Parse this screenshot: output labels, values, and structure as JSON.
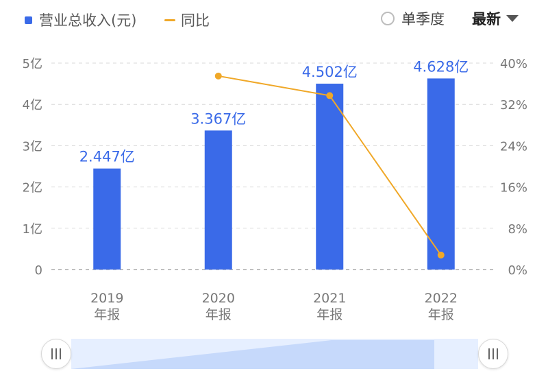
{
  "legend": {
    "revenue_label": "营业总收入(元)",
    "yoy_label": "同比"
  },
  "controls": {
    "quarter_label": "单季度",
    "sort_label": "最新"
  },
  "colors": {
    "bar": "#3a6ae8",
    "line": "#f0a828",
    "bar_label": "#3a6ae8",
    "axis_text": "#777777",
    "grid": "#d9d9d9"
  },
  "chart_data": {
    "type": "bar",
    "categories": [
      "2019",
      "2020",
      "2021",
      "2022"
    ],
    "category_sublabel": "年报",
    "series": [
      {
        "axis": "left",
        "type": "bar",
        "values": [
          2.447,
          3.367,
          4.502,
          4.628
        ],
        "labels": [
          "2.447亿",
          "3.367亿",
          "4.502亿",
          "4.628亿"
        ]
      },
      {
        "name": "同比",
        "axis": "right",
        "type": "line",
        "values": [
          null,
          37.5,
          33.7,
          2.8
        ]
      }
    ],
    "y_left": {
      "ylim": [
        0,
        5
      ],
      "ticks": [
        "0",
        "1亿",
        "2亿",
        "3亿",
        "4亿",
        "5亿"
      ]
    },
    "y_right": {
      "ylim": [
        0,
        40
      ],
      "ticks": [
        "0%",
        "8%",
        "16%",
        "24%",
        "32%",
        "40%"
      ]
    },
    "grid": true
  },
  "range_slider": {
    "start": 0,
    "end": 1
  }
}
